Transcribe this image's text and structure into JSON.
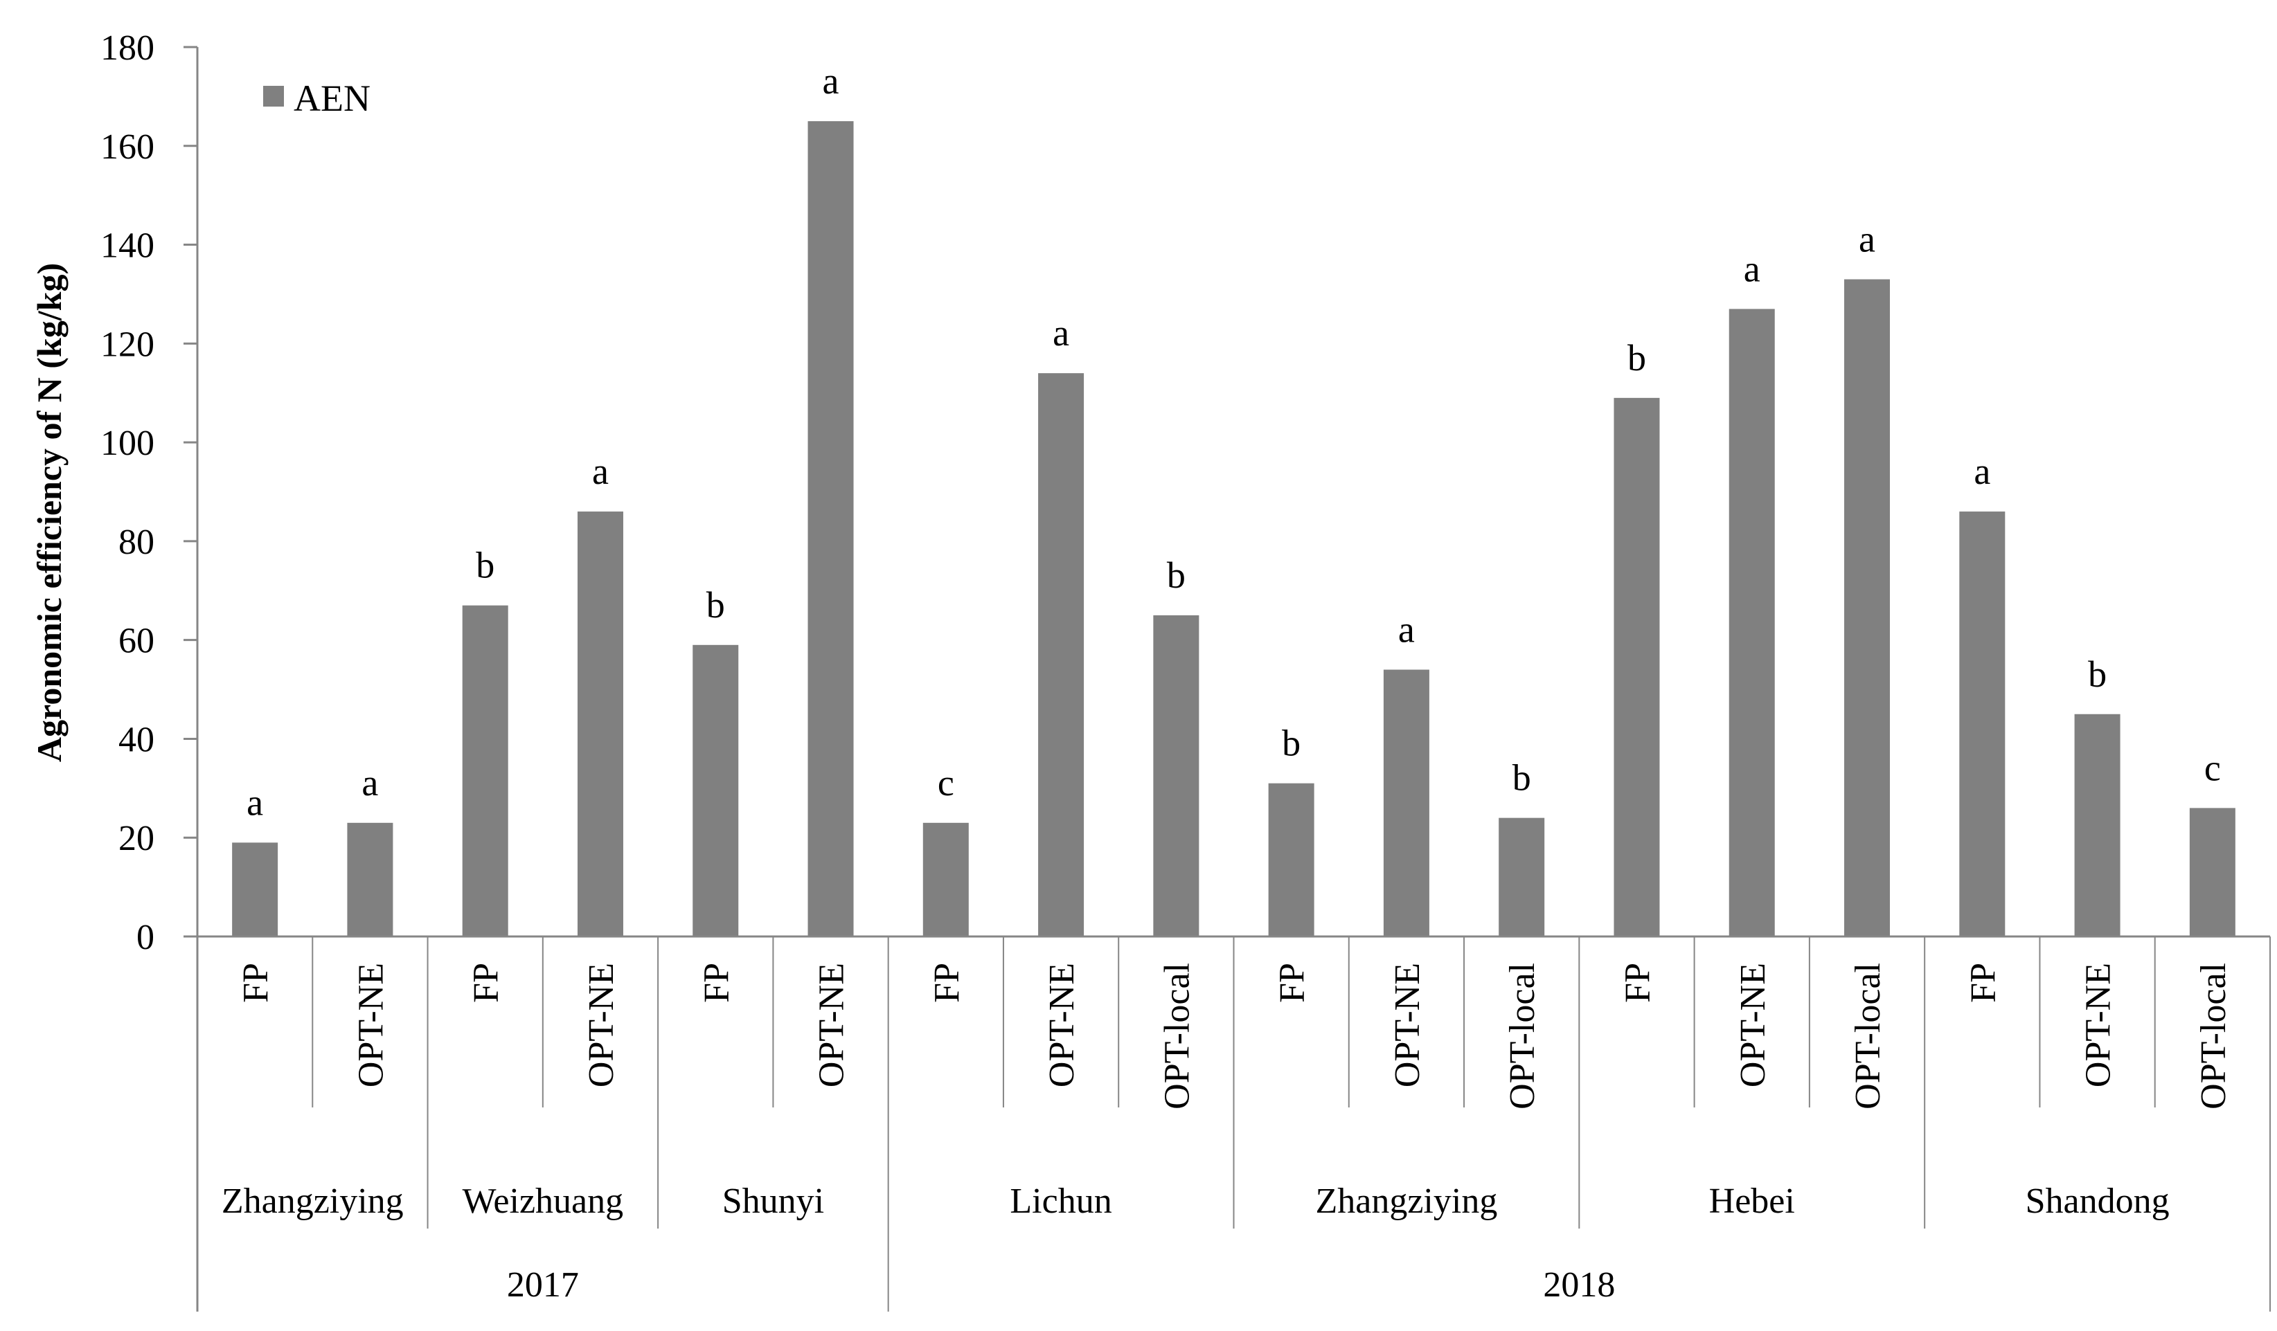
{
  "chart_data": {
    "type": "bar",
    "ylabel": "Agronomic efficiency of N (kg/kg)",
    "ylim": [
      0,
      180
    ],
    "yticks": [
      0,
      20,
      40,
      60,
      80,
      100,
      120,
      140,
      160,
      180
    ],
    "legend": {
      "placement": "top-left",
      "entries": [
        "AEN"
      ]
    },
    "bar_color": "#808080",
    "series": [
      {
        "name": "AEN",
        "values": [
          19,
          23,
          67,
          86,
          59,
          165,
          23,
          114,
          65,
          31,
          54,
          24,
          109,
          127,
          133,
          86,
          45,
          26
        ]
      }
    ],
    "categories": [
      "FP",
      "OPT-NE",
      "FP",
      "OPT-NE",
      "FP",
      "OPT-NE",
      "FP",
      "OPT-NE",
      "OPT-local",
      "FP",
      "OPT-NE",
      "OPT-local",
      "FP",
      "OPT-NE",
      "OPT-local",
      "FP",
      "OPT-NE",
      "OPT-local"
    ],
    "significance": [
      "a",
      "a",
      "b",
      "a",
      "b",
      "a",
      "c",
      "a",
      "b",
      "b",
      "a",
      "b",
      "b",
      "a",
      "a",
      "a",
      "b",
      "c"
    ],
    "sites": [
      {
        "name": "Zhangziying",
        "span": 2
      },
      {
        "name": "Weizhuang",
        "span": 2
      },
      {
        "name": "Shunyi",
        "span": 2
      },
      {
        "name": "Lichun",
        "span": 3
      },
      {
        "name": "Zhangziying",
        "span": 3
      },
      {
        "name": "Hebei",
        "span": 3
      },
      {
        "name": "Shandong",
        "span": 3
      }
    ],
    "years": [
      {
        "name": "2017",
        "span": 6
      },
      {
        "name": "2018",
        "span": 12
      }
    ],
    "grid": false
  }
}
